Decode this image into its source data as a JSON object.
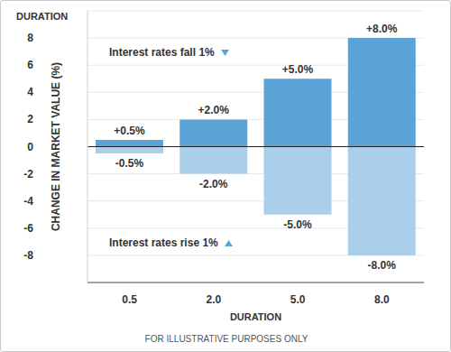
{
  "chart_data": {
    "type": "bar",
    "title": "DURATION",
    "x_label": "DURATION",
    "y_label": "CHANGE IN MARKET VALUE (%)",
    "footer": "FOR ILLUSTRATIVE PURPOSES ONLY",
    "categories": [
      "0.5",
      "2.0",
      "5.0",
      "8.0"
    ],
    "series": [
      {
        "name": "Interest rates fall 1%",
        "color": "#5ba3d6",
        "values": [
          0.5,
          2,
          5,
          8
        ],
        "value_labels": [
          "+0.5%",
          "+2.0%",
          "+5.0%",
          "+8.0%"
        ]
      },
      {
        "name": "Interest rates rise 1%",
        "color": "#a9cfea",
        "values": [
          -0.5,
          -2,
          -5,
          -8
        ],
        "value_labels": [
          "-0.5%",
          "-2.0%",
          "-5.0%",
          "-8.0%"
        ]
      }
    ],
    "ylim": [
      -10,
      10
    ],
    "yticks": [
      -8,
      -6,
      -4,
      -2,
      0,
      2,
      4,
      6,
      8
    ],
    "grid": true,
    "stacked": true,
    "data_labels": true
  }
}
